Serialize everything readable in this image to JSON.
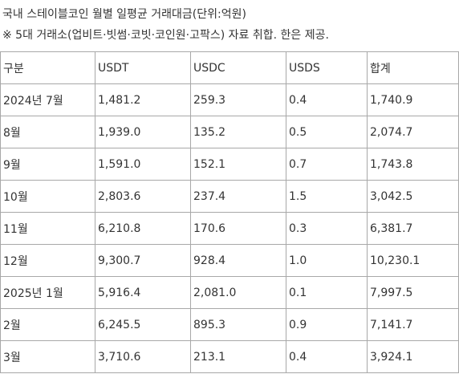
{
  "header": {
    "title": "국내 스테이블코인 월별 일평균 거래대금(단위:억원)",
    "note": "※ 5대 거래소(업비트·빗썸·코빗·코인원·고팍스) 자료 취합. 한은 제공."
  },
  "table": {
    "columns": [
      "구분",
      "USDT",
      "USDC",
      "USDS",
      "합계"
    ],
    "rows": [
      [
        "2024년 7월",
        "1,481.2",
        "259.3",
        "0.4",
        "1,740.9"
      ],
      [
        "8월",
        "1,939.0",
        "135.2",
        "0.5",
        "2,074.7"
      ],
      [
        "9월",
        "1,591.0",
        "152.1",
        "0.7",
        "1,743.8"
      ],
      [
        "10월",
        "2,803.6",
        "237.4",
        "1.5",
        "3,042.5"
      ],
      [
        "11월",
        "6,210.8",
        "170.6",
        "0.3",
        "6,381.7"
      ],
      [
        "12월",
        "9,300.7",
        "928.4",
        "1.0",
        "10,230.1"
      ],
      [
        "2025년 1월",
        "5,916.4",
        "2,081.0",
        "0.1",
        "7,997.5"
      ],
      [
        "2월",
        "6,245.5",
        "895.3",
        "0.9",
        "7,141.7"
      ],
      [
        "3월",
        "3,710.6",
        "213.1",
        "0.4",
        "3,924.1"
      ]
    ]
  }
}
